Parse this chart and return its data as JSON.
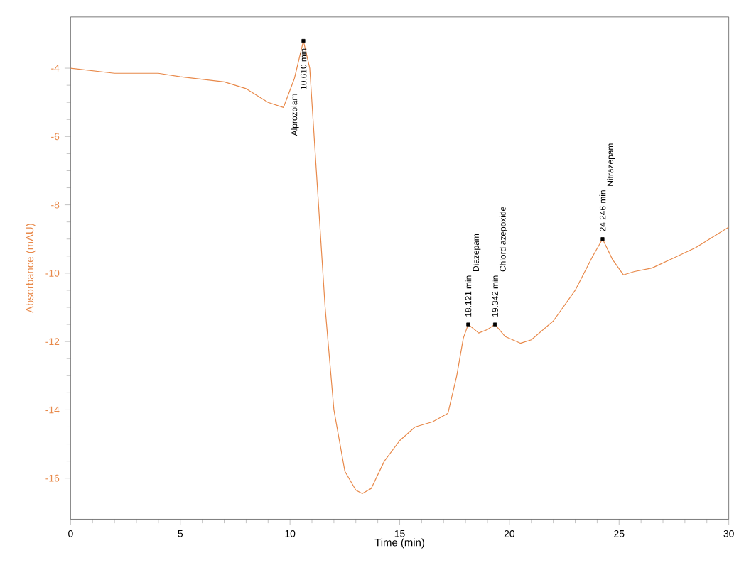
{
  "chart_data": {
    "type": "line",
    "xlabel": "Time (min)",
    "ylabel": "Absorbance (mAU)",
    "xlim": [
      0,
      30
    ],
    "ylim": [
      -17.2,
      -2.5
    ],
    "xticks": [
      0,
      5,
      10,
      15,
      20,
      25,
      30
    ],
    "yticks": [
      -16,
      -14,
      -12,
      -10,
      -8,
      -6,
      -4
    ],
    "series": [
      {
        "color": "#e8894a",
        "x": [
          0,
          2,
          4,
          5,
          7,
          8,
          9,
          9.7,
          10.2,
          10.61,
          10.9,
          11.2,
          11.6,
          12,
          12.5,
          13,
          13.3,
          13.7,
          14.3,
          15,
          15.7,
          16.5,
          17.2,
          17.6,
          17.9,
          18.121,
          18.6,
          19,
          19.342,
          19.8,
          20.5,
          21,
          22,
          23,
          23.8,
          24.246,
          24.7,
          25.2,
          25.7,
          26.5,
          27.5,
          28.5,
          29.5,
          30
        ],
        "values": [
          -4.0,
          -4.15,
          -4.15,
          -4.25,
          -4.4,
          -4.6,
          -5.0,
          -5.15,
          -4.3,
          -3.2,
          -4.0,
          -7,
          -11,
          -14,
          -15.8,
          -16.35,
          -16.45,
          -16.3,
          -15.5,
          -14.9,
          -14.5,
          -14.35,
          -14.1,
          -13.0,
          -11.9,
          -11.5,
          -11.75,
          -11.65,
          -11.5,
          -11.85,
          -12.05,
          -11.95,
          -11.4,
          -10.5,
          -9.5,
          -9.0,
          -9.6,
          -10.05,
          -9.95,
          -9.85,
          -9.55,
          -9.25,
          -8.85,
          -8.65
        ]
      },
      {
        "type": "scatter",
        "color": "#000000",
        "marker": "square",
        "x": [
          10.61,
          18.121,
          19.342,
          24.246
        ],
        "values": [
          -3.2,
          -11.5,
          -11.5,
          -9.0
        ]
      }
    ],
    "annotations": [
      {
        "text": "10.610 min",
        "x": 10.61,
        "y": -3.2
      },
      "Alprozolam",
      {
        "text": "18.121 min",
        "x": 18.121,
        "y": -11.5
      },
      "Diazepam",
      {
        "text": "19.342 min",
        "x": 19.342,
        "y": -11.5
      },
      "Chlordiazepoxide",
      {
        "text": "24.246 min",
        "x": 24.246,
        "y": -9.0
      },
      "Nitrazepam"
    ]
  }
}
